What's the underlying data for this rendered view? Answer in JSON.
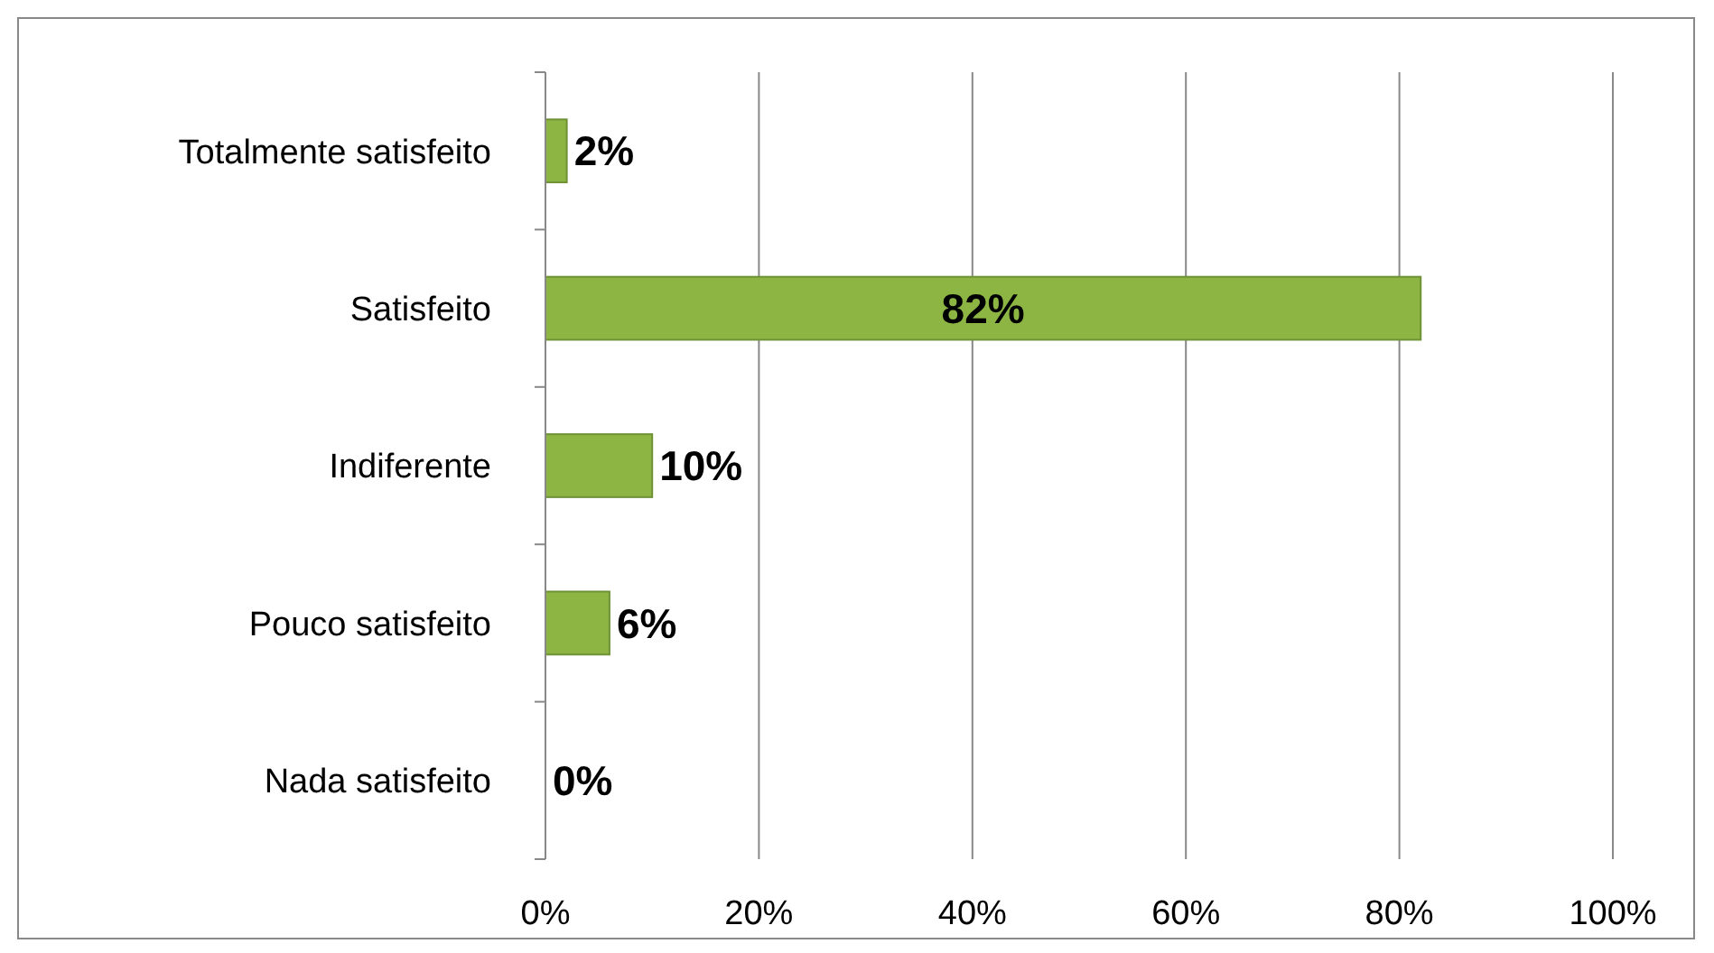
{
  "chart_data": {
    "type": "bar",
    "orientation": "horizontal",
    "categories": [
      "Totalmente satisfeito",
      "Satisfeito",
      "Indiferente",
      "Pouco satisfeito",
      "Nada satisfeito"
    ],
    "values": [
      2,
      82,
      10,
      6,
      0
    ],
    "value_labels": [
      "2%",
      "82%",
      "10%",
      "6%",
      "0%"
    ],
    "color": "#8db543",
    "xlim": [
      0,
      100
    ],
    "xticks": [
      {
        "value": 0,
        "label": "0%"
      },
      {
        "value": 20,
        "label": "20%"
      },
      {
        "value": 40,
        "label": "40%"
      },
      {
        "value": 60,
        "label": "60%"
      },
      {
        "value": 80,
        "label": "80%"
      },
      {
        "value": 100,
        "label": "100%"
      }
    ],
    "grid": "x"
  }
}
